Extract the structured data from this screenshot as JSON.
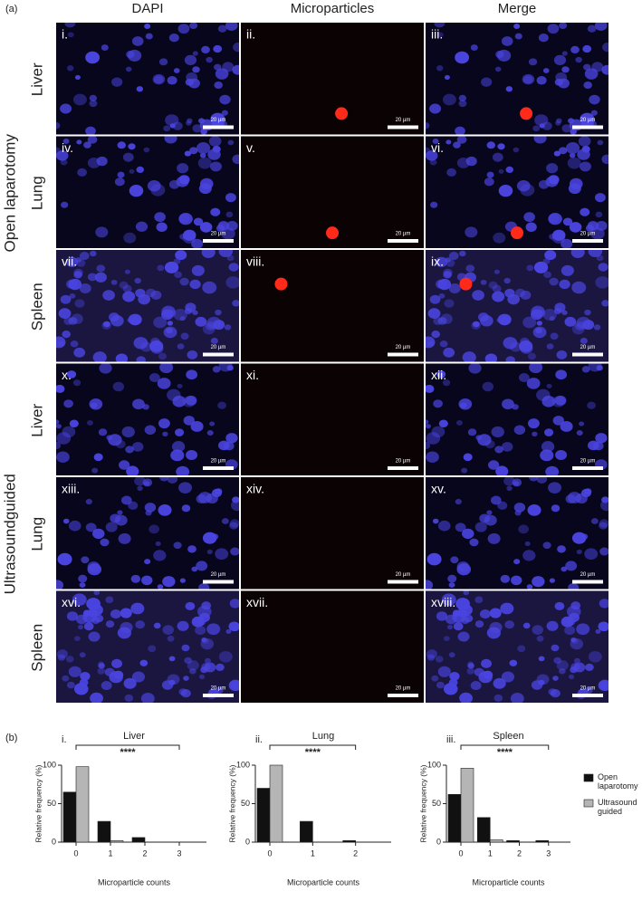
{
  "figure": {
    "panel_a_label": "(a)",
    "panel_b_label": "(b)"
  },
  "microscopy": {
    "columns": [
      "DAPI",
      "Microparticles",
      "Merge"
    ],
    "groups": [
      {
        "label": "Open laparotomy",
        "rows": [
          "Liver",
          "Lung",
          "Spleen"
        ]
      },
      {
        "label": "Ultrasoundguided",
        "rows": [
          "Liver",
          "Lung",
          "Spleen"
        ]
      }
    ],
    "panels": [
      "i.",
      "ii.",
      "iii.",
      "iv.",
      "v.",
      "vi.",
      "vii.",
      "viii.",
      "ix.",
      "x.",
      "xi.",
      "xii.",
      "xiii.",
      "xiv.",
      "xv.",
      "xvi.",
      "xvii.",
      "xviii."
    ],
    "scale_bar": "20 µm"
  },
  "chart_data": [
    {
      "type": "bar",
      "panel": "i.",
      "title": "Liver",
      "x_label": "Microparticle counts",
      "y_label": "Relative frequency (%)",
      "categories": [
        "0",
        "1",
        "2",
        "3"
      ],
      "series": [
        {
          "color": "#111111",
          "values": [
            65,
            27,
            6,
            0
          ]
        },
        {
          "color": "#b5b5b5",
          "values": [
            98,
            2,
            0,
            0
          ]
        }
      ],
      "ylim": [
        0,
        100
      ],
      "yticks": [
        0,
        50,
        100
      ],
      "annotation": "****"
    },
    {
      "type": "bar",
      "panel": "ii.",
      "title": "Lung",
      "x_label": "Microparticle counts",
      "y_label": "Relative frequency (%)",
      "categories": [
        "0",
        "1",
        "2"
      ],
      "series": [
        {
          "color": "#111111",
          "values": [
            70,
            27,
            2
          ]
        },
        {
          "color": "#b5b5b5",
          "values": [
            100,
            0,
            0
          ]
        }
      ],
      "ylim": [
        0,
        100
      ],
      "yticks": [
        0,
        50,
        100
      ],
      "annotation": "****"
    },
    {
      "type": "bar",
      "panel": "iii.",
      "title": "Spleen",
      "x_label": "Microparticle counts",
      "y_label": "Relative frequency (%)",
      "categories": [
        "0",
        "1",
        "2",
        "3"
      ],
      "series": [
        {
          "name": "Open laparotomy",
          "color": "#111111",
          "values": [
            62,
            32,
            2,
            2
          ]
        },
        {
          "name": "Ultrasound guided",
          "color": "#b5b5b5",
          "values": [
            96,
            3,
            0,
            0
          ]
        }
      ],
      "ylim": [
        0,
        100
      ],
      "yticks": [
        0,
        50,
        100
      ],
      "annotation": "****",
      "legend": "right"
    }
  ]
}
